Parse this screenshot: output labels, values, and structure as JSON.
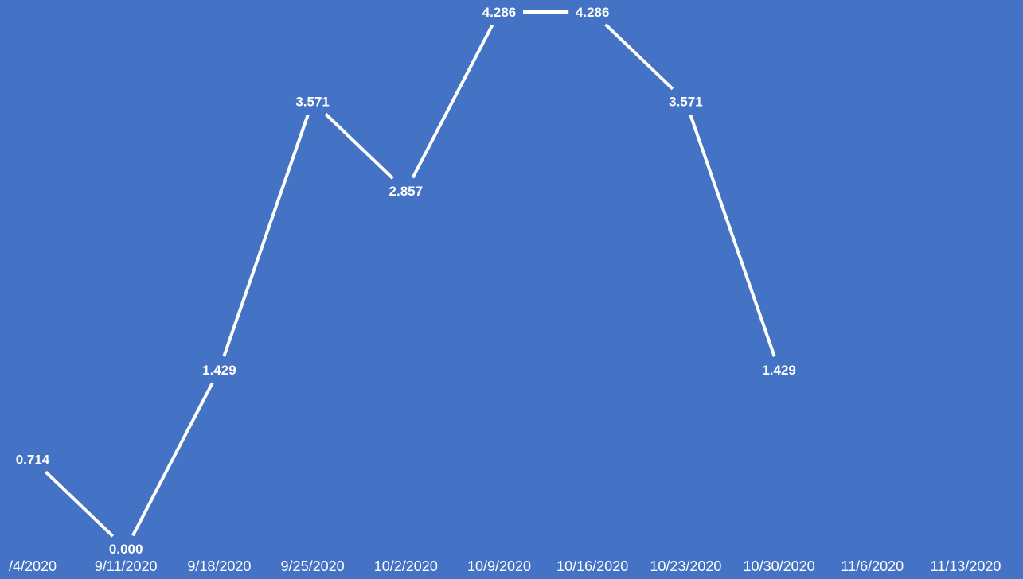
{
  "chart_data": {
    "type": "line",
    "title": "",
    "xlabel": "",
    "ylabel": "",
    "categories": [
      "/4/2020",
      "9/11/2020",
      "9/18/2020",
      "9/25/2020",
      "10/2/2020",
      "10/9/2020",
      "10/16/2020",
      "10/23/2020",
      "10/30/2020",
      "11/6/2020",
      "11/13/2020"
    ],
    "series": [
      {
        "name": "",
        "values": [
          0.714,
          0.0,
          1.429,
          3.571,
          2.857,
          4.286,
          4.286,
          3.571,
          1.429,
          null,
          null
        ],
        "data_labels": [
          "0.714",
          "0.000",
          "1.429",
          "3.571",
          "2.857",
          "4.286",
          "4.286",
          "3.571",
          "1.429",
          "",
          ""
        ]
      }
    ],
    "ylim": [
      0,
      4.286
    ],
    "grid": false,
    "drop_lines": true,
    "legend": "none",
    "colors": {
      "background": "#4472C4",
      "line": "#FFFFFF",
      "text": "#FFFFFF"
    }
  }
}
